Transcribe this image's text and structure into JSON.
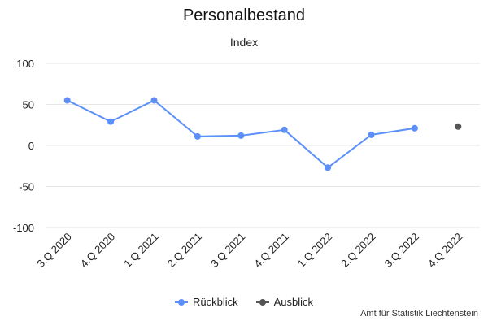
{
  "chart_data": {
    "type": "line",
    "title": "Personalbestand",
    "subtitle": "Index",
    "xlabel": "",
    "ylabel": "",
    "categories": [
      "3.Q 2020",
      "4.Q 2020",
      "1.Q 2021",
      "2.Q 2021",
      "3.Q 2021",
      "4.Q 2021",
      "1.Q 2022",
      "2.Q 2022",
      "3.Q 2022",
      "4.Q 2022"
    ],
    "ylim": [
      -100,
      100
    ],
    "yticks": [
      100,
      50,
      0,
      -50,
      -100
    ],
    "grid": true,
    "legend_position": "bottom",
    "series": [
      {
        "name": "Rückblick",
        "color": "#5b8ff9",
        "values": [
          55,
          29,
          55,
          11,
          12,
          19,
          -27,
          13,
          21,
          null
        ]
      },
      {
        "name": "Ausblick",
        "color": "#555555",
        "values": [
          null,
          null,
          null,
          null,
          null,
          null,
          null,
          null,
          null,
          23
        ]
      }
    ]
  },
  "credit": "Amt für Statistik Liechtenstein"
}
